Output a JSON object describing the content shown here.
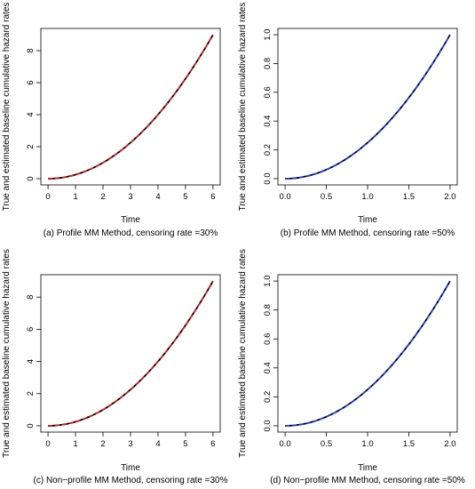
{
  "figure": {
    "ylabel": "True and estimated baseline cumulative hazard rates"
  },
  "chart_data": [
    {
      "type": "line",
      "caption": "(a) Profile MM Method, censoring rate =30%",
      "xlabel": "Time",
      "ylabel": "True and estimated baseline cumulative hazard rates",
      "xlim": [
        0,
        6
      ],
      "ylim": [
        0,
        9
      ],
      "xticks": [
        "0",
        "1",
        "2",
        "3",
        "4",
        "5",
        "6"
      ],
      "yticks": [
        "0",
        "2",
        "4",
        "6",
        "8"
      ],
      "series": [
        {
          "style": "solid",
          "color": "#000000",
          "x": [
            0,
            1,
            2,
            3,
            4,
            5,
            6
          ],
          "y": [
            0,
            0.25,
            1,
            2.25,
            4,
            6.25,
            9
          ]
        },
        {
          "style": "dashed",
          "color": "#e31a1c",
          "x": [
            0,
            1,
            2,
            3,
            4,
            5,
            6
          ],
          "y": [
            0,
            0.25,
            1,
            2.25,
            4,
            6.25,
            9
          ]
        }
      ]
    },
    {
      "type": "line",
      "caption": "(b) Profile MM Method, censoring rate =50%",
      "xlabel": "Time",
      "ylabel": "True and estimated baseline cumulative hazard rates",
      "xlim": [
        0,
        2
      ],
      "ylim": [
        0,
        1
      ],
      "xticks": [
        "0.0",
        "0.5",
        "1.0",
        "1.5",
        "2.0"
      ],
      "yticks": [
        "0.0",
        "0.2",
        "0.4",
        "0.6",
        "0.8",
        "1.0"
      ],
      "series": [
        {
          "style": "solid",
          "color": "#000000",
          "x": [
            0,
            0.5,
            1.0,
            1.5,
            2.0
          ],
          "y": [
            0,
            0.0625,
            0.25,
            0.5625,
            1.0
          ]
        },
        {
          "style": "dashed",
          "color": "#1f3cff",
          "x": [
            0,
            0.5,
            1.0,
            1.5,
            2.0
          ],
          "y": [
            0,
            0.0625,
            0.25,
            0.5625,
            1.0
          ]
        }
      ]
    },
    {
      "type": "line",
      "caption": "(c) Non−profile MM Method, censoring rate =30%",
      "xlabel": "Time",
      "ylabel": "True and estimated baseline cumulative hazard rates",
      "xlim": [
        0,
        6
      ],
      "ylim": [
        0,
        9
      ],
      "xticks": [
        "0",
        "1",
        "2",
        "3",
        "4",
        "5",
        "6"
      ],
      "yticks": [
        "0",
        "2",
        "4",
        "6",
        "8"
      ],
      "series": [
        {
          "style": "solid",
          "color": "#000000",
          "x": [
            0,
            1,
            2,
            3,
            4,
            5,
            6
          ],
          "y": [
            0,
            0.25,
            1,
            2.25,
            4,
            6.25,
            9
          ]
        },
        {
          "style": "dashed",
          "color": "#e31a1c",
          "x": [
            0,
            1,
            2,
            3,
            4,
            5,
            6
          ],
          "y": [
            0,
            0.25,
            1,
            2.25,
            4,
            6.25,
            9
          ]
        }
      ]
    },
    {
      "type": "line",
      "caption": "(d) Non−profile MM Method, censoring rate =50%",
      "xlabel": "Time",
      "ylabel": "True and estimated baseline cumulative hazard rates",
      "xlim": [
        0,
        2
      ],
      "ylim": [
        0,
        1
      ],
      "xticks": [
        "0.0",
        "0.5",
        "1.0",
        "1.5",
        "2.0"
      ],
      "yticks": [
        "0.0",
        "0.2",
        "0.4",
        "0.6",
        "0.8",
        "1.0"
      ],
      "series": [
        {
          "style": "solid",
          "color": "#000000",
          "x": [
            0,
            0.5,
            1.0,
            1.5,
            2.0
          ],
          "y": [
            0,
            0.0625,
            0.25,
            0.5625,
            1.0
          ]
        },
        {
          "style": "dashed",
          "color": "#1f3cff",
          "x": [
            0,
            0.5,
            1.0,
            1.5,
            2.0
          ],
          "y": [
            0,
            0.0625,
            0.25,
            0.5625,
            1.0
          ]
        }
      ]
    }
  ]
}
